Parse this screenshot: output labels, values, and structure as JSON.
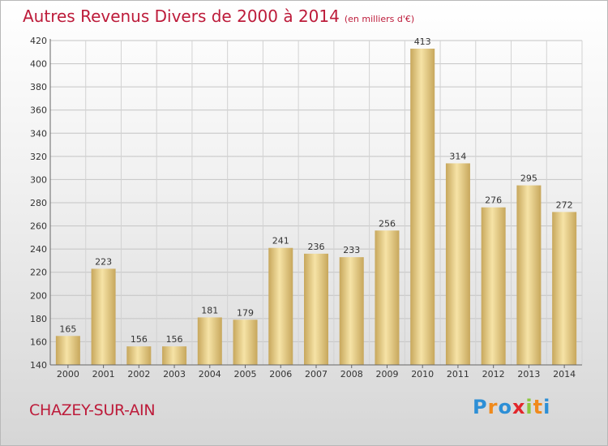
{
  "header": {
    "title": "Autres Revenus Divers de 2000 à 2014",
    "unit": "(en milliers d'€)"
  },
  "footer": {
    "commune": "CHAZEY-SUR-AIN"
  },
  "brand": {
    "letters": [
      "P",
      "r",
      "o",
      "x",
      "i",
      "t",
      "i"
    ],
    "colors": [
      "#2d8fd6",
      "#f08a1c",
      "#2d8fd6",
      "#e2262b",
      "#8cc63e",
      "#f08a1c",
      "#2d8fd6"
    ]
  },
  "colors": {
    "title": "#bd1b3a",
    "bar_light": "#f6e3a6",
    "bar_dark": "#c7a75c"
  },
  "chart_data": {
    "type": "bar",
    "title": "Autres Revenus Divers de 2000 à 2014",
    "xlabel": "",
    "ylabel": "",
    "categories": [
      "2000",
      "2001",
      "2002",
      "2003",
      "2004",
      "2005",
      "2006",
      "2007",
      "2008",
      "2009",
      "2010",
      "2011",
      "2012",
      "2013",
      "2014"
    ],
    "values": [
      165,
      223,
      156,
      156,
      181,
      179,
      241,
      236,
      233,
      256,
      413,
      314,
      276,
      295,
      272
    ],
    "ylim": [
      140,
      420
    ],
    "yticks": [
      140,
      160,
      180,
      200,
      220,
      240,
      260,
      280,
      300,
      320,
      340,
      360,
      380,
      400,
      420
    ],
    "grid": true
  }
}
